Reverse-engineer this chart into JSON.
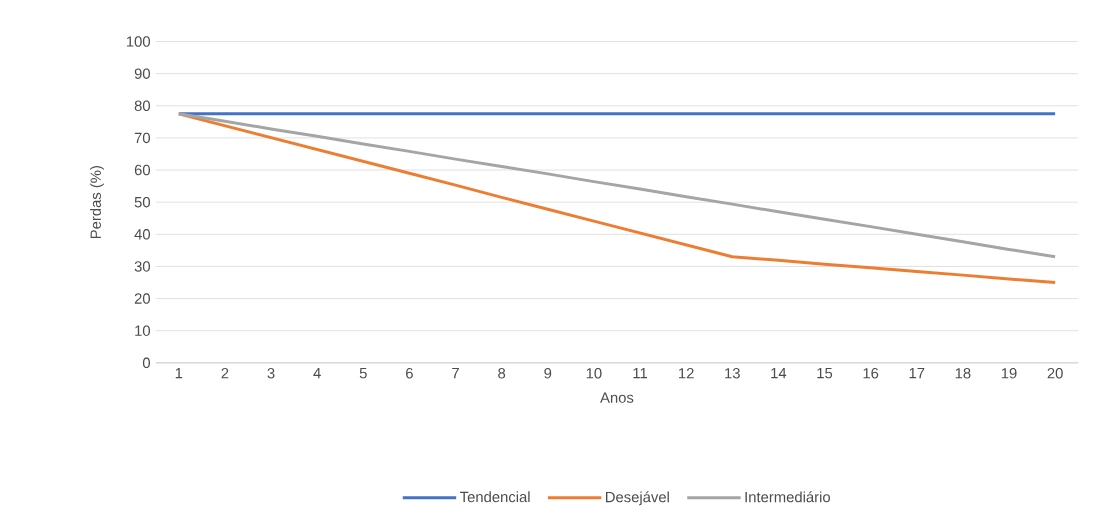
{
  "chart_data": {
    "type": "line",
    "xlabel": "Anos",
    "ylabel": "Perdas (%)",
    "categories": [
      "1",
      "2",
      "3",
      "4",
      "5",
      "6",
      "7",
      "8",
      "9",
      "10",
      "11",
      "12",
      "13",
      "14",
      "15",
      "16",
      "17",
      "18",
      "19",
      "20"
    ],
    "series": [
      {
        "name": "Tendencial",
        "color": "#4472c4",
        "values": [
          77.5,
          77.5,
          77.5,
          77.5,
          77.5,
          77.5,
          77.5,
          77.5,
          77.5,
          77.5,
          77.5,
          77.5,
          77.5,
          77.5,
          77.5,
          77.5,
          77.5,
          77.5,
          77.5,
          77.5
        ]
      },
      {
        "name": "Desejável",
        "color": "#ed7d31",
        "values": [
          77.5,
          73.8,
          70.1,
          66.4,
          62.7,
          59.0,
          55.3,
          51.5,
          47.8,
          44.1,
          40.4,
          36.7,
          33.0,
          31.9,
          30.7,
          29.6,
          28.4,
          27.3,
          26.1,
          25.0
        ]
      },
      {
        "name": "Intermediário",
        "color": "#a5a5a5",
        "values": [
          77.5,
          75.2,
          72.8,
          70.5,
          68.1,
          65.8,
          63.4,
          61.1,
          58.8,
          56.4,
          54.1,
          51.7,
          49.4,
          47.0,
          44.7,
          42.4,
          40.0,
          37.7,
          35.3,
          33.0
        ]
      }
    ],
    "ylim": [
      0,
      100
    ],
    "yticks": [
      0,
      10,
      20,
      30,
      40,
      50,
      60,
      70,
      80,
      90,
      100
    ],
    "grid": "y",
    "legend": "bottom"
  }
}
